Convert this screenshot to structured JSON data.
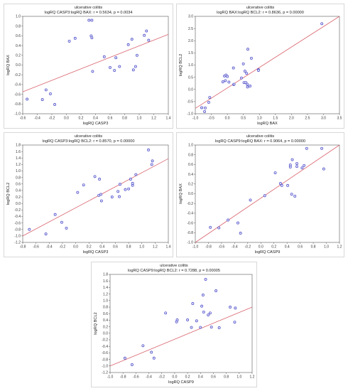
{
  "colors": {
    "line": "#d9646e",
    "point_stroke": "#4a4ac8",
    "point_fill": "#dcdcf6",
    "axis": "#555555"
  },
  "chart_data": [
    {
      "type": "scatter",
      "title": "ulcerative colitis",
      "subtitle": "logRQ CASP3:logRQ BAX: r = 0.5634, p = 0.0034",
      "xlabel": "logRQ CASP3",
      "ylabel": "logRQ BAX",
      "xlim": [
        -0.6,
        1.4
      ],
      "ylim": [
        -1.0,
        1.0
      ],
      "xticks": [
        "-0.6",
        "-0.4",
        "-0.2",
        "0.0",
        "0.2",
        "0.4",
        "0.6",
        "0.8",
        "1.0",
        "1.2",
        "1.4"
      ],
      "yticks": [
        "-1.0",
        "-0.8",
        "-0.6",
        "-0.4",
        "-0.2",
        "0.0",
        "0.2",
        "0.4",
        "0.6",
        "0.8",
        "1.0"
      ],
      "points": [
        [
          -0.54,
          -0.7
        ],
        [
          -0.33,
          -0.71
        ],
        [
          -0.28,
          -0.51
        ],
        [
          -0.22,
          -0.59
        ],
        [
          -0.16,
          -0.81
        ],
        [
          0.04,
          0.49
        ],
        [
          0.12,
          0.55
        ],
        [
          0.31,
          0.92
        ],
        [
          0.35,
          0.92
        ],
        [
          0.35,
          0.56
        ],
        [
          0.34,
          0.6
        ],
        [
          0.36,
          -0.13
        ],
        [
          0.52,
          0.17
        ],
        [
          0.6,
          -0.05
        ],
        [
          0.66,
          -0.11
        ],
        [
          0.68,
          0.15
        ],
        [
          0.73,
          -0.03
        ],
        [
          0.85,
          0.42
        ],
        [
          0.9,
          0.53
        ],
        [
          0.92,
          -0.1
        ],
        [
          0.95,
          -0.03
        ],
        [
          0.97,
          0.2
        ],
        [
          1.07,
          0.61
        ],
        [
          1.1,
          0.7
        ],
        [
          1.13,
          0.51
        ]
      ],
      "regression": {
        "x": [
          -0.6,
          1.4
        ],
        "y": [
          -0.55,
          0.63
        ]
      }
    },
    {
      "type": "scatter",
      "title": "ulcerative colitis",
      "subtitle": "logRQ BAX:logRQ BCL2: r = 0.8636, p = 0.00000",
      "xlabel": "logRQ BAX",
      "ylabel": "logRQ BCL2",
      "xlim": [
        -1.0,
        3.5
      ],
      "ylim": [
        -1.0,
        3.0
      ],
      "xticks": [
        "-1.0",
        "-0.5",
        "0.0",
        "0.5",
        "1.0",
        "1.5",
        "2.0",
        "2.5",
        "3.0",
        "3.5"
      ],
      "yticks": [
        "-1.0",
        "-0.5",
        "0.0",
        "0.5",
        "1.0",
        "1.5",
        "2.0",
        "2.5",
        "3.0"
      ],
      "points": [
        [
          -0.8,
          -0.75
        ],
        [
          -0.71,
          -0.91
        ],
        [
          -0.69,
          -0.76
        ],
        [
          -0.58,
          -0.53
        ],
        [
          -0.55,
          -0.33
        ],
        [
          -0.14,
          0.31
        ],
        [
          -0.06,
          0.36
        ],
        [
          -0.09,
          0.55
        ],
        [
          -0.04,
          0.59
        ],
        [
          0.0,
          0.53
        ],
        [
          0.05,
          0.3
        ],
        [
          0.19,
          0.88
        ],
        [
          0.2,
          0.2
        ],
        [
          0.21,
          0.21
        ],
        [
          0.44,
          0.47
        ],
        [
          0.5,
          1.05
        ],
        [
          0.55,
          0.75
        ],
        [
          0.52,
          0.28
        ],
        [
          0.58,
          0.28
        ],
        [
          0.6,
          0.66
        ],
        [
          0.62,
          0.21
        ],
        [
          0.63,
          0.1
        ],
        [
          0.71,
          0.14
        ],
        [
          0.64,
          1.65
        ],
        [
          0.75,
          1.28
        ],
        [
          0.97,
          0.81
        ],
        [
          0.97,
          0.78
        ],
        [
          2.95,
          2.7
        ]
      ],
      "regression": {
        "x": [
          -1.0,
          3.5
        ],
        "y": [
          -0.78,
          3.0
        ]
      }
    },
    {
      "type": "scatter",
      "title": "ulcerative colitis",
      "subtitle": "logRQ CASP3:logRQ BCL2: r = 0.8570, p = 0.00000",
      "xlabel": "logRQ CASP3",
      "ylabel": "logRQ BCL2",
      "xlim": [
        -0.8,
        1.4
      ],
      "ylim": [
        -1.2,
        1.8
      ],
      "xticks": [
        "-0.8",
        "-0.6",
        "-0.4",
        "-0.2",
        "0.0",
        "0.2",
        "0.4",
        "0.6",
        "0.8",
        "1.0",
        "1.2",
        "1.4"
      ],
      "yticks": [
        "-1.2",
        "-1.0",
        "-0.8",
        "-0.6",
        "-0.4",
        "-0.2",
        "0.0",
        "0.2",
        "0.4",
        "0.6",
        "0.8",
        "1.0",
        "1.2",
        "1.4",
        "1.6",
        "1.8"
      ],
      "points": [
        [
          -0.7,
          -0.8
        ],
        [
          -0.45,
          -0.94
        ],
        [
          -0.31,
          -0.34
        ],
        [
          -0.21,
          -0.58
        ],
        [
          -0.14,
          -0.76
        ],
        [
          0.03,
          0.34
        ],
        [
          0.12,
          0.57
        ],
        [
          0.29,
          0.83
        ],
        [
          0.35,
          0.25
        ],
        [
          0.38,
          0.28
        ],
        [
          0.39,
          0.08
        ],
        [
          0.36,
          0.75
        ],
        [
          0.55,
          0.2
        ],
        [
          0.66,
          0.21
        ],
        [
          0.67,
          0.59
        ],
        [
          0.64,
          0.37
        ],
        [
          0.75,
          0.43
        ],
        [
          0.8,
          0.45
        ],
        [
          0.83,
          0.75
        ],
        [
          0.86,
          0.56
        ],
        [
          0.86,
          0.62
        ],
        [
          0.91,
          0.89
        ],
        [
          1.1,
          1.65
        ],
        [
          1.15,
          1.2
        ],
        [
          1.16,
          1.31
        ]
      ],
      "regression": {
        "x": [
          -0.8,
          1.4
        ],
        "y": [
          -1.0,
          1.38
        ]
      }
    },
    {
      "type": "scatter",
      "title": "ulcerative colitis",
      "subtitle": "logRQ CASP9:logRQ BAX: r = 0.9064, p = 0.00000",
      "xlabel": "logRQ CASP9",
      "ylabel": "logRQ BAX",
      "xlim": [
        -1.0,
        1.2
      ],
      "ylim": [
        -1.0,
        1.0
      ],
      "xticks": [
        "-1.0",
        "-0.8",
        "-0.6",
        "-0.4",
        "-0.2",
        "0.0",
        "0.2",
        "0.4",
        "0.6",
        "0.8",
        "1.0",
        "1.2"
      ],
      "yticks": [
        "-1.0",
        "-0.8",
        "-0.6",
        "-0.4",
        "-0.2",
        "0.0",
        "0.2",
        "0.4",
        "0.6",
        "0.8",
        "1.0"
      ],
      "points": [
        [
          -0.77,
          -0.69
        ],
        [
          -0.64,
          -0.7
        ],
        [
          -0.5,
          -0.54
        ],
        [
          -0.35,
          -0.6
        ],
        [
          -0.31,
          -0.81
        ],
        [
          -0.16,
          -0.13
        ],
        [
          0.06,
          -0.04
        ],
        [
          0.22,
          0.43
        ],
        [
          0.3,
          0.21
        ],
        [
          0.32,
          0.17
        ],
        [
          0.41,
          0.17
        ],
        [
          0.45,
          0.55
        ],
        [
          0.45,
          0.59
        ],
        [
          0.48,
          0.7
        ],
        [
          0.47,
          -0.01
        ],
        [
          0.52,
          -0.05
        ],
        [
          0.55,
          0.62
        ],
        [
          0.55,
          0.56
        ],
        [
          0.63,
          0.53
        ],
        [
          0.66,
          0.58
        ],
        [
          0.7,
          0.93
        ],
        [
          0.93,
          0.93
        ],
        [
          0.96,
          0.51
        ]
      ],
      "regression": {
        "x": [
          -1.0,
          1.2
        ],
        "y": [
          -1.0,
          1.0
        ]
      }
    },
    {
      "type": "scatter",
      "title": "ulcerative colitis",
      "subtitle": "logRQ CASP9:logRQ BCL2: r = 0.7288, p = 0.00005",
      "xlabel": "logRQ CASP9",
      "ylabel": "logRQ BCL2",
      "xlim": [
        -1.0,
        1.2
      ],
      "ylim": [
        -1.2,
        1.8
      ],
      "xticks": [
        "-1.0",
        "-0.8",
        "-0.6",
        "-0.4",
        "-0.2",
        "0.0",
        "0.2",
        "0.4",
        "0.6",
        "0.8",
        "1.0",
        "1.2"
      ],
      "yticks": [
        "-1.2",
        "-1.0",
        "-0.8",
        "-0.6",
        "-0.4",
        "-0.2",
        "0.0",
        "0.2",
        "0.4",
        "0.6",
        "0.8",
        "1.0",
        "1.2",
        "1.4",
        "1.6",
        "1.8"
      ],
      "points": [
        [
          -0.77,
          -0.76
        ],
        [
          -0.66,
          -0.96
        ],
        [
          -0.49,
          -0.38
        ],
        [
          -0.36,
          -0.58
        ],
        [
          -0.32,
          -0.76
        ],
        [
          -0.14,
          0.62
        ],
        [
          0.03,
          0.35
        ],
        [
          0.04,
          0.41
        ],
        [
          0.2,
          0.41
        ],
        [
          0.26,
          0.18
        ],
        [
          0.28,
          0.91
        ],
        [
          0.34,
          0.38
        ],
        [
          0.4,
          0.18
        ],
        [
          0.42,
          0.83
        ],
        [
          0.44,
          1.17
        ],
        [
          0.45,
          0.65
        ],
        [
          0.48,
          1.65
        ],
        [
          0.52,
          0.56
        ],
        [
          0.57,
          0.19
        ],
        [
          0.55,
          0.62
        ],
        [
          0.64,
          1.3
        ],
        [
          0.69,
          0.17
        ],
        [
          0.86,
          0.8
        ],
        [
          0.94,
          0.77
        ],
        [
          0.93,
          0.34
        ]
      ],
      "regression": {
        "x": [
          -1.0,
          1.2
        ],
        "y": [
          -1.0,
          0.8
        ]
      }
    }
  ]
}
